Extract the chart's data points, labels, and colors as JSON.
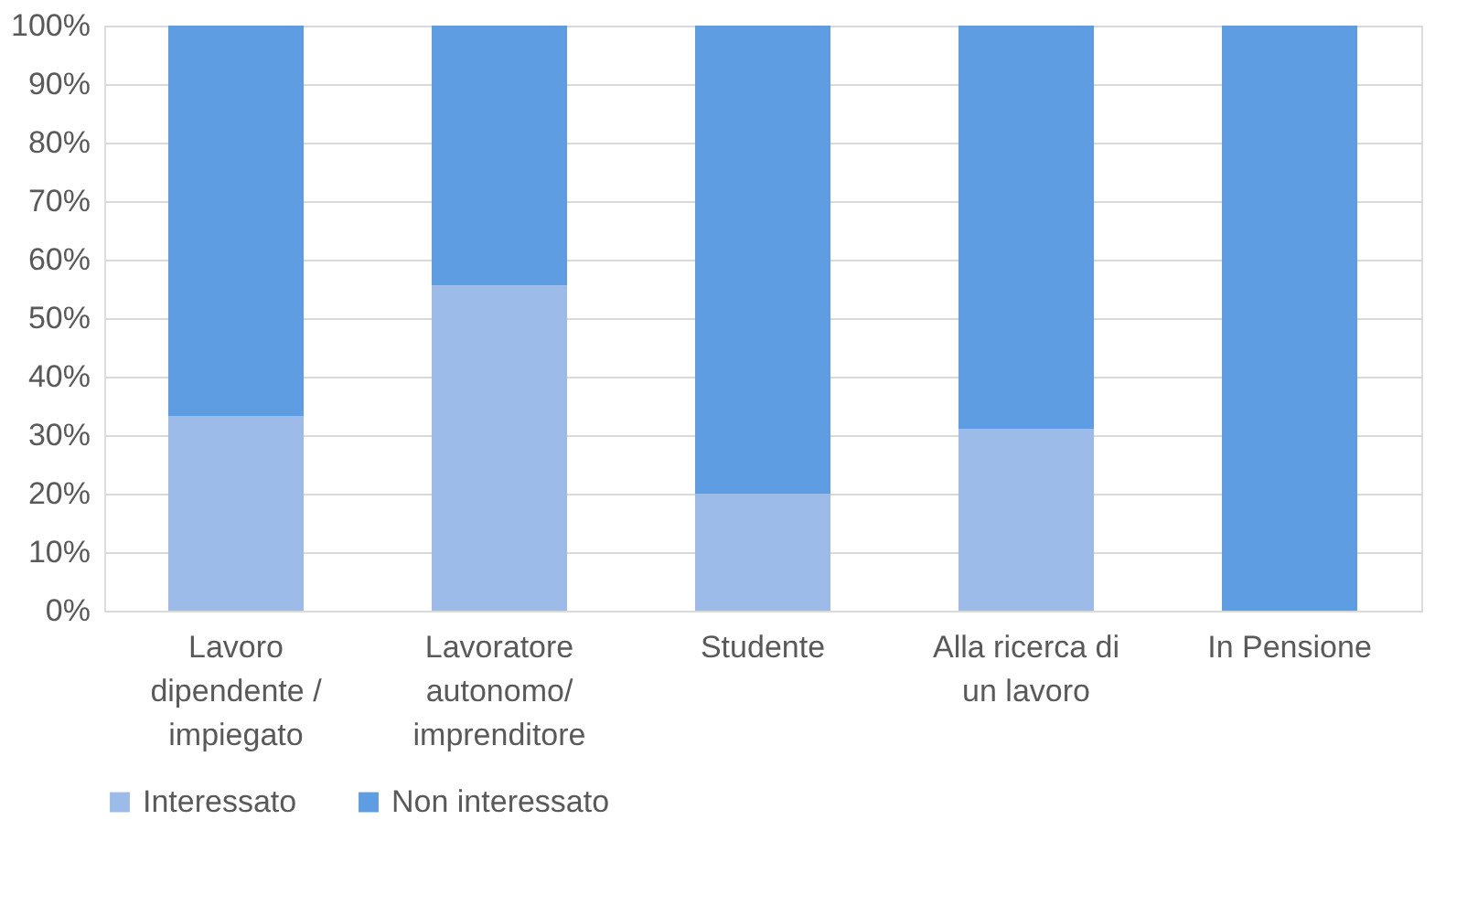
{
  "chart_data": {
    "type": "bar",
    "stacked": true,
    "categories": [
      "Lavoro dipendente / impiegato",
      "Lavoratore autonomo/ imprenditore",
      "Studente",
      "Alla ricerca di un lavoro",
      "In Pensione"
    ],
    "series": [
      {
        "name": "Interessato",
        "color": "#9dbbe8",
        "values": [
          33.3,
          55.6,
          20,
          31,
          0
        ]
      },
      {
        "name": "Non interessato",
        "color": "#5f9de3",
        "values": [
          66.7,
          44.4,
          80,
          69,
          100
        ]
      }
    ],
    "ylim": [
      0,
      100
    ],
    "yticks": [
      {
        "value": 0,
        "label": "0%"
      },
      {
        "value": 10,
        "label": "10%"
      },
      {
        "value": 20,
        "label": "20%"
      },
      {
        "value": 30,
        "label": "30%"
      },
      {
        "value": 40,
        "label": "40%"
      },
      {
        "value": 50,
        "label": "50%"
      },
      {
        "value": 60,
        "label": "60%"
      },
      {
        "value": 70,
        "label": "70%"
      },
      {
        "value": 80,
        "label": "80%"
      },
      {
        "value": 90,
        "label": "90%"
      },
      {
        "value": 100,
        "label": "100%"
      }
    ],
    "grid": "y",
    "legend": "bottom"
  }
}
